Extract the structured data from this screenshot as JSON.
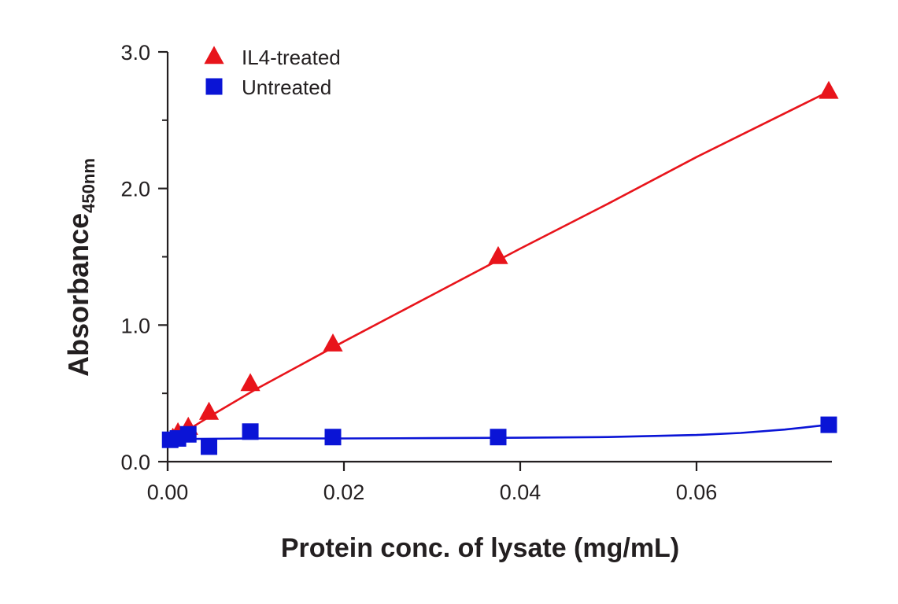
{
  "chart_data": {
    "type": "scatter",
    "xlabel": "Protein conc. of lysate (mg/mL)",
    "ylabel": "Absorbance",
    "ylabel_subscript": "450nm",
    "xlim": [
      0.0,
      0.075
    ],
    "ylim": [
      0.0,
      3.0
    ],
    "x_ticks": [
      0.0,
      0.02,
      0.04,
      0.06
    ],
    "x_tick_labels": [
      "0.00",
      "0.02",
      "0.04",
      "0.06"
    ],
    "y_ticks": [
      0.0,
      1.0,
      2.0,
      3.0
    ],
    "y_tick_labels": [
      "0.0",
      "1.0",
      "2.0",
      "3.0"
    ],
    "y_minor_ticks": [
      0.5,
      1.5,
      2.5
    ],
    "grid": false,
    "legend_position": "top-left",
    "series": [
      {
        "name": "IL4-treated",
        "marker": "triangle",
        "color": "#e8141b",
        "points": [
          [
            0.00059,
            0.17
          ],
          [
            0.00117,
            0.21
          ],
          [
            0.00234,
            0.25
          ],
          [
            0.00469,
            0.36
          ],
          [
            0.00938,
            0.57
          ],
          [
            0.01875,
            0.86
          ],
          [
            0.0375,
            1.5
          ],
          [
            0.075,
            2.71
          ]
        ],
        "fit": [
          [
            0.0,
            0.16
          ],
          [
            0.0025,
            0.24
          ],
          [
            0.005,
            0.34
          ],
          [
            0.01,
            0.53
          ],
          [
            0.02,
            0.88
          ],
          [
            0.03,
            1.22
          ],
          [
            0.04,
            1.56
          ],
          [
            0.05,
            1.89
          ],
          [
            0.06,
            2.23
          ],
          [
            0.075,
            2.71
          ]
        ]
      },
      {
        "name": "Untreated",
        "marker": "square",
        "color": "#0a14d6",
        "points": [
          [
            0.00029,
            0.16
          ],
          [
            0.00117,
            0.17
          ],
          [
            0.00234,
            0.2
          ],
          [
            0.00469,
            0.11
          ],
          [
            0.00938,
            0.22
          ],
          [
            0.01875,
            0.18
          ],
          [
            0.0375,
            0.18
          ],
          [
            0.075,
            0.27
          ]
        ],
        "fit": [
          [
            0.0,
            0.165
          ],
          [
            0.01,
            0.17
          ],
          [
            0.02,
            0.17
          ],
          [
            0.03,
            0.172
          ],
          [
            0.04,
            0.175
          ],
          [
            0.05,
            0.18
          ],
          [
            0.06,
            0.195
          ],
          [
            0.065,
            0.21
          ],
          [
            0.07,
            0.235
          ],
          [
            0.075,
            0.27
          ]
        ]
      }
    ]
  }
}
